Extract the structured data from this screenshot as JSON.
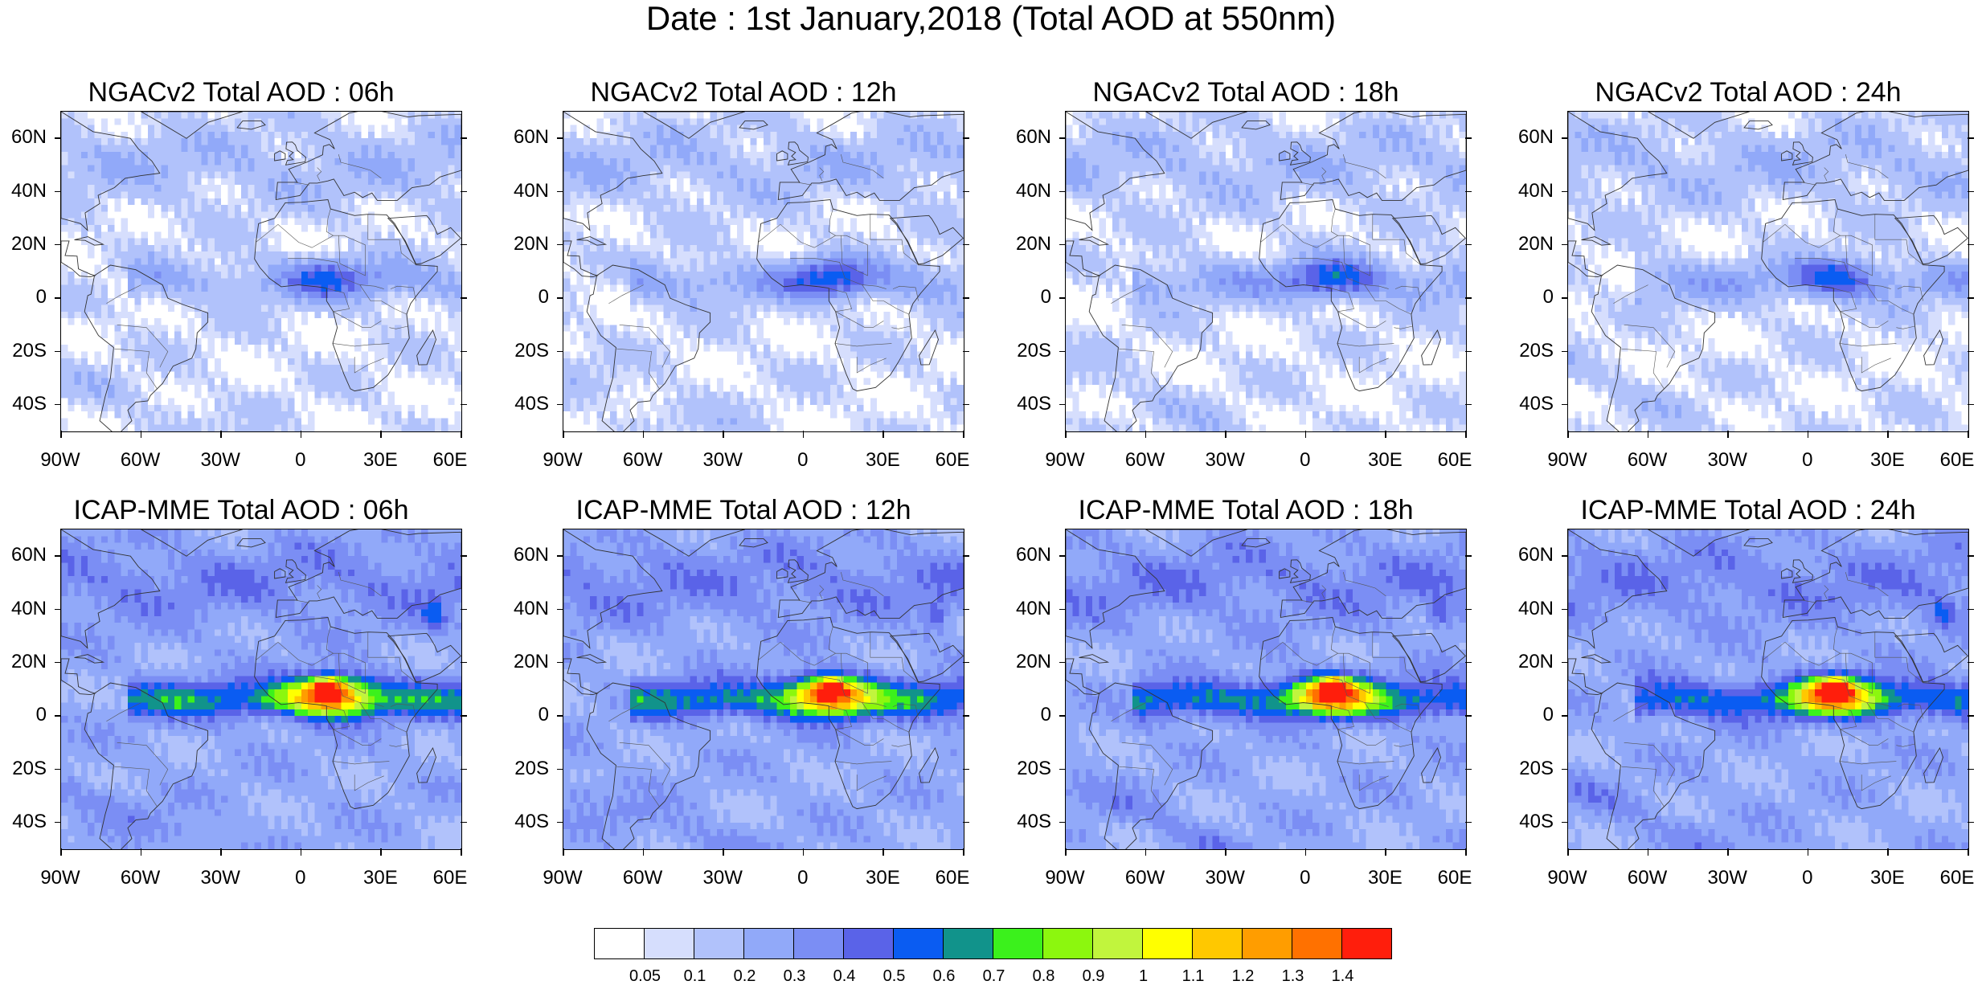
{
  "title": "Date : 1st January,2018 (Total AOD at 550nm)",
  "panels": [
    {
      "title": "NGACv2 Total AOD : 06h",
      "model": "NGACv2",
      "hour": "06h",
      "intensity": 0.55,
      "hotspot": false,
      "streak": 0.6
    },
    {
      "title": "NGACv2 Total AOD : 12h",
      "model": "NGACv2",
      "hour": "12h",
      "intensity": 0.6,
      "hotspot": false,
      "streak": 0.7
    },
    {
      "title": "NGACv2 Total AOD : 18h",
      "model": "NGACv2",
      "hour": "18h",
      "intensity": 0.62,
      "hotspot": false,
      "streak": 0.7
    },
    {
      "title": "NGACv2 Total AOD : 24h",
      "model": "NGACv2",
      "hour": "24h",
      "intensity": 0.6,
      "hotspot": false,
      "streak": 0.65
    },
    {
      "title": "ICAP-MME Total AOD : 06h",
      "model": "ICAP-MME",
      "hour": "06h",
      "intensity": 1.0,
      "hotspot": true,
      "streak": 1.0
    },
    {
      "title": "ICAP-MME Total AOD : 12h",
      "model": "ICAP-MME",
      "hour": "12h",
      "intensity": 0.95,
      "hotspot": true,
      "streak": 1.0
    },
    {
      "title": "ICAP-MME Total AOD : 18h",
      "model": "ICAP-MME",
      "hour": "18h",
      "intensity": 0.95,
      "hotspot": true,
      "streak": 0.95
    },
    {
      "title": "ICAP-MME Total AOD : 24h",
      "model": "ICAP-MME",
      "hour": "24h",
      "intensity": 0.95,
      "hotspot": true,
      "streak": 0.9
    }
  ],
  "axes": {
    "lat_labels": [
      "60N",
      "40N",
      "20N",
      "0",
      "20S",
      "40S"
    ],
    "lat_values": [
      60,
      40,
      20,
      0,
      -20,
      -40
    ],
    "lon_labels": [
      "90W",
      "60W",
      "30W",
      "0",
      "30E",
      "60E"
    ],
    "lon_values": [
      -90,
      -60,
      -30,
      0,
      30,
      60
    ],
    "lat_range": [
      -50,
      70
    ],
    "lon_range": [
      -90,
      60
    ]
  },
  "colorbar": {
    "levels": [
      "0.05",
      "0.1",
      "0.2",
      "0.3",
      "0.4",
      "0.5",
      "0.6",
      "0.7",
      "0.8",
      "0.9",
      "1",
      "1.1",
      "1.2",
      "1.3",
      "1.4"
    ],
    "colors": [
      "#ffffff",
      "#d6defd",
      "#b1c2fb",
      "#91a9f9",
      "#7b8ef4",
      "#5a63e8",
      "#0a5cf2",
      "#11938b",
      "#3bf11c",
      "#8cf70e",
      "#c1f53d",
      "#ffff00",
      "#ffc800",
      "#ff9d00",
      "#ff7100",
      "#ff1e0c"
    ]
  }
}
